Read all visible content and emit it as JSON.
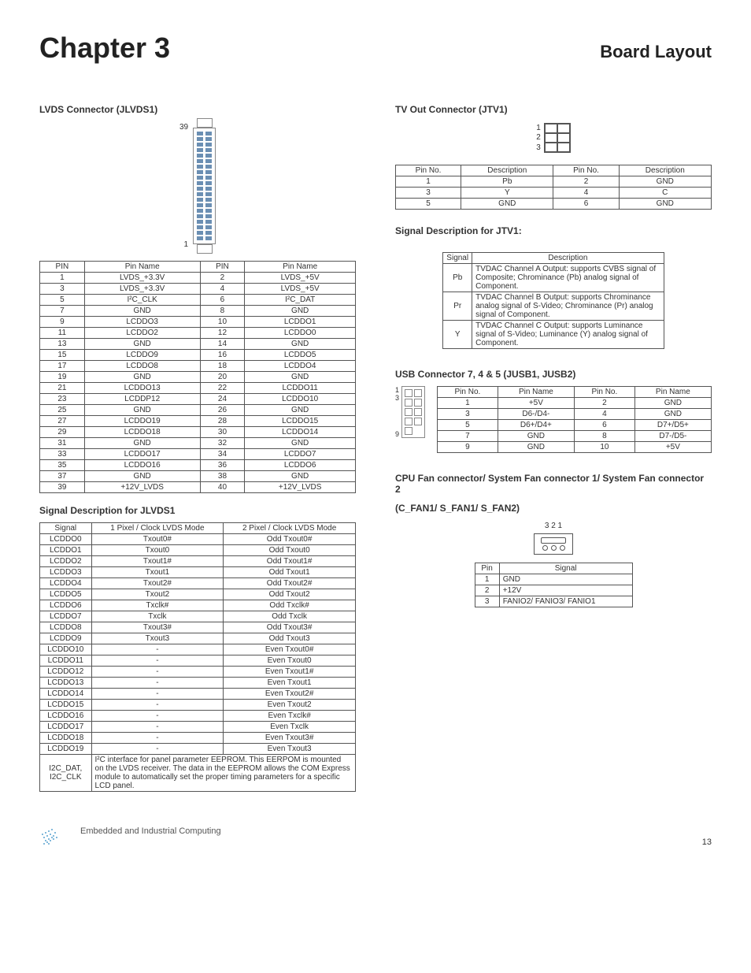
{
  "header": {
    "chapter": "Chapter 3",
    "title": "Board Layout"
  },
  "footer": {
    "text": "Embedded and Industrial Computing",
    "page": "13"
  },
  "lvds": {
    "title": "LVDS Connector (JLVDS1)",
    "pin_top": "39",
    "pin_bottom": "1",
    "table_headers": [
      "PIN",
      "Pin Name",
      "PIN",
      "Pin Name"
    ],
    "rows": [
      [
        "1",
        "LVDS_+3.3V",
        "2",
        "LVDS_+5V"
      ],
      [
        "3",
        "LVDS_+3.3V",
        "4",
        "LVDS_+5V"
      ],
      [
        "5",
        "I²C_CLK",
        "6",
        "I²C_DAT"
      ],
      [
        "7",
        "GND",
        "8",
        "GND"
      ],
      [
        "9",
        "LCDDO3",
        "10",
        "LCDDO1"
      ],
      [
        "11",
        "LCDDO2",
        "12",
        "LCDDO0"
      ],
      [
        "13",
        "GND",
        "14",
        "GND"
      ],
      [
        "15",
        "LCDDO9",
        "16",
        "LCDDO5"
      ],
      [
        "17",
        "LCDDO8",
        "18",
        "LCDDO4"
      ],
      [
        "19",
        "GND",
        "20",
        "GND"
      ],
      [
        "21",
        "LCDDO13",
        "22",
        "LCDDO11"
      ],
      [
        "23",
        "LCDDP12",
        "24",
        "LCDDO10"
      ],
      [
        "25",
        "GND",
        "26",
        "GND"
      ],
      [
        "27",
        "LCDDO19",
        "28",
        "LCDDO15"
      ],
      [
        "29",
        "LCDDO18",
        "30",
        "LCDDO14"
      ],
      [
        "31",
        "GND",
        "32",
        "GND"
      ],
      [
        "33",
        "LCDDO17",
        "34",
        "LCDDO7"
      ],
      [
        "35",
        "LCDDO16",
        "36",
        "LCDDO6"
      ],
      [
        "37",
        "GND",
        "38",
        "GND"
      ],
      [
        "39",
        "+12V_LVDS",
        "40",
        "+12V_LVDS"
      ]
    ]
  },
  "lvds_signal": {
    "title": "Signal Description for JLVDS1",
    "headers": [
      "Signal",
      "1 Pixel / Clock LVDS Mode",
      "2 Pixel / Clock LVDS Mode"
    ],
    "rows": [
      [
        "LCDDO0",
        "Txout0#",
        "Odd Txout0#"
      ],
      [
        "LCDDO1",
        "Txout0",
        "Odd Txout0"
      ],
      [
        "LCDDO2",
        "Txout1#",
        "Odd Txout1#"
      ],
      [
        "LCDDO3",
        "Txout1",
        "Odd Txout1"
      ],
      [
        "LCDDO4",
        "Txout2#",
        "Odd Txout2#"
      ],
      [
        "LCDDO5",
        "Txout2",
        "Odd Txout2"
      ],
      [
        "LCDDO6",
        "Txclk#",
        "Odd Txclk#"
      ],
      [
        "LCDDO7",
        "Txclk",
        "Odd Txclk"
      ],
      [
        "LCDDO8",
        "Txout3#",
        "Odd Txout3#"
      ],
      [
        "LCDDO9",
        "Txout3",
        "Odd Txout3"
      ],
      [
        "LCDDO10",
        "-",
        "Even Txout0#"
      ],
      [
        "LCDDO11",
        "-",
        "Even Txout0"
      ],
      [
        "LCDDO12",
        "-",
        "Even Txout1#"
      ],
      [
        "LCDDO13",
        "-",
        "Even Txout1"
      ],
      [
        "LCDDO14",
        "-",
        "Even Txout2#"
      ],
      [
        "LCDDO15",
        "-",
        "Even Txout2"
      ],
      [
        "LCDDO16",
        "-",
        "Even Txclk#"
      ],
      [
        "LCDDO17",
        "-",
        "Even Txclk"
      ],
      [
        "LCDDO18",
        "-",
        "Even Txout3#"
      ],
      [
        "LCDDO19",
        "-",
        "Even Txout3"
      ]
    ],
    "i2c_row_label": "I2C_DAT, I2C_CLK",
    "i2c_desc": "I²C interface for panel parameter EEPROM. This EERPOM is mounted on the LVDS receiver. The data in the EEPROM allows the COM Express module to automatically set the proper timing parameters for a specific LCD panel."
  },
  "jtv": {
    "title": "TV Out Connector (JTV1)",
    "labels": [
      "1",
      "2",
      "3"
    ],
    "table_headers": [
      "Pin No.",
      "Description",
      "Pin No.",
      "Description"
    ],
    "rows": [
      [
        "1",
        "Pb",
        "2",
        "GND"
      ],
      [
        "3",
        "Y",
        "4",
        "C"
      ],
      [
        "5",
        "GND",
        "6",
        "GND"
      ]
    ]
  },
  "jtv_signal": {
    "title": "Signal Description for JTV1:",
    "headers": [
      "Signal",
      "Description"
    ],
    "rows": [
      [
        "Pb",
        "TVDAC Channel A Output: supports CVBS signal of Composite; Chrominance (Pb) analog signal of Component."
      ],
      [
        "Pr",
        "TVDAC Channel B Output: supports Chrominance analog signal of S-Video; Chrominance (Pr) analog signal of Component."
      ],
      [
        "Y",
        "TVDAC Channel C Output: supports Luminance signal of S-Video; Luminance (Y) analog signal of Component."
      ]
    ]
  },
  "usb": {
    "title": "USB Connector 7, 4 & 5 (JUSB1, JUSB2)",
    "labels": [
      "1",
      "3",
      "9"
    ],
    "headers": [
      "Pin No.",
      "Pin Name",
      "Pin No.",
      "Pin Name"
    ],
    "rows": [
      [
        "1",
        "+5V",
        "2",
        "GND"
      ],
      [
        "3",
        "D6-/D4-",
        "4",
        "GND"
      ],
      [
        "5",
        "D6+/D4+",
        "6",
        "D7+/D5+"
      ],
      [
        "7",
        "GND",
        "8",
        "D7-/D5-"
      ],
      [
        "9",
        "GND",
        "10",
        "+5V"
      ]
    ]
  },
  "fan": {
    "title1": "CPU Fan connector/ System Fan connector 1/ System Fan connector 2",
    "title2": "(C_FAN1/ S_FAN1/ S_FAN2)",
    "labels": "3 2 1",
    "headers": [
      "Pin",
      "Signal"
    ],
    "rows": [
      [
        "1",
        "GND"
      ],
      [
        "2",
        "+12V"
      ],
      [
        "3",
        "FANIO2/ FANIO3/ FANIO1"
      ]
    ]
  }
}
